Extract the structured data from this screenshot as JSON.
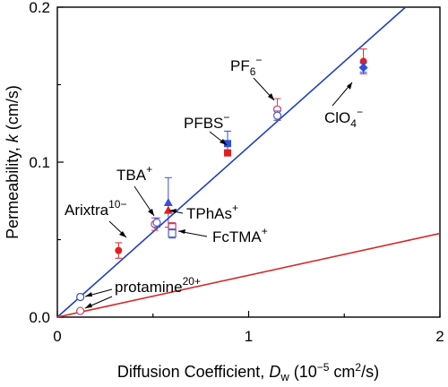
{
  "chart_data": {
    "type": "scatter",
    "xlabel": {
      "main": "Diffusion Coefficient, ",
      "var": "D",
      "sub": "w",
      "unit_pre": " (10",
      "unit_exp": "−5",
      "unit_mid": " cm",
      "unit_exp2": "2",
      "unit_post": "/s)"
    },
    "ylabel": {
      "main": "Permeability, ",
      "var": "k",
      "unit": " (cm/s)"
    },
    "xlim": [
      0,
      2
    ],
    "ylim": [
      0,
      0.2
    ],
    "xticks": [
      "0",
      "1",
      "2"
    ],
    "yticks": [
      "0.0",
      "0.1",
      "0.2"
    ],
    "lines": [
      {
        "color": "#1f3fbf",
        "x": [
          0,
          1.82
        ],
        "y": [
          0,
          0.2
        ]
      },
      {
        "color": "#d42a2a",
        "x": [
          0,
          2
        ],
        "y": [
          0,
          0.054
        ]
      }
    ],
    "points": [
      {
        "x": 0.12,
        "y": 0.004,
        "marker": "circle-open",
        "color": "#d43a5a",
        "err": 0
      },
      {
        "x": 0.12,
        "y": 0.013,
        "marker": "circle-open",
        "color": "#3a4fbf",
        "err": 0
      },
      {
        "x": 0.32,
        "y": 0.043,
        "marker": "circle",
        "color": "#e02020",
        "err": 0.005
      },
      {
        "x": 0.51,
        "y": 0.06,
        "marker": "circle-open",
        "color": "#c04070",
        "err": 0.004
      },
      {
        "x": 0.52,
        "y": 0.061,
        "marker": "circle-open",
        "color": "#5060c0",
        "err": 0.003
      },
      {
        "x": 0.58,
        "y": 0.074,
        "marker": "triangle",
        "color": "#3a4fd0",
        "err": 0.016
      },
      {
        "x": 0.58,
        "y": 0.069,
        "marker": "triangle",
        "color": "#e02020",
        "err": 0
      },
      {
        "x": 0.6,
        "y": 0.058,
        "marker": "square-open",
        "color": "#d43a5a",
        "err": 0.003
      },
      {
        "x": 0.6,
        "y": 0.054,
        "marker": "square-open",
        "color": "#5060c0",
        "err": 0.003
      },
      {
        "x": 0.89,
        "y": 0.112,
        "marker": "square",
        "color": "#2a4fe0",
        "err": 0.008
      },
      {
        "x": 0.89,
        "y": 0.106,
        "marker": "square",
        "color": "#e02020",
        "err": 0
      },
      {
        "x": 1.15,
        "y": 0.134,
        "marker": "circle-open",
        "color": "#d43a5a",
        "err": 0.007
      },
      {
        "x": 1.15,
        "y": 0.13,
        "marker": "circle-open",
        "color": "#5060c0",
        "err": 0.003
      },
      {
        "x": 1.6,
        "y": 0.165,
        "marker": "circle",
        "color": "#e02020",
        "err": 0.008
      },
      {
        "x": 1.6,
        "y": 0.161,
        "marker": "diamond",
        "color": "#2a4fe0",
        "err": 0.003
      }
    ],
    "annotations": [
      {
        "id": "pf6",
        "base": "PF",
        "sub": "6",
        "sup": "−"
      },
      {
        "id": "pfbs",
        "base": "PFBS",
        "sub": "",
        "sup": "−"
      },
      {
        "id": "clo4",
        "base": "ClO",
        "sub": "4",
        "sup": "−"
      },
      {
        "id": "tba",
        "base": "TBA",
        "sub": "",
        "sup": "+"
      },
      {
        "id": "arixtra",
        "base": "Arixtra",
        "sub": "",
        "sup": "10−"
      },
      {
        "id": "tphas",
        "base": "TPhAs",
        "sub": "",
        "sup": "+"
      },
      {
        "id": "fctma",
        "base": "FcTMA",
        "sub": "",
        "sup": "+"
      },
      {
        "id": "protamine",
        "base": "protamine",
        "sub": "",
        "sup": "20+"
      }
    ]
  }
}
